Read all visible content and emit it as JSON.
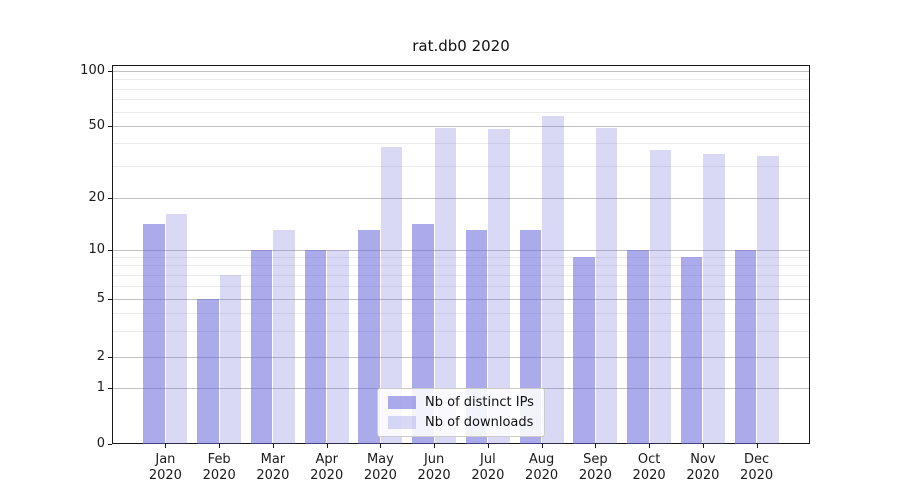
{
  "chart_data": {
    "type": "bar",
    "title": "rat.db0 2020",
    "categories": [
      "Jan",
      "Feb",
      "Mar",
      "Apr",
      "May",
      "Jun",
      "Jul",
      "Aug",
      "Sep",
      "Oct",
      "Nov",
      "Dec"
    ],
    "category_year": "2020",
    "series": [
      {
        "name": "Nb of distinct IPs",
        "color": "rgba(102,102,221,0.55)",
        "values": [
          14,
          5,
          10,
          10,
          13,
          14,
          13,
          13,
          9,
          10,
          9,
          10
        ]
      },
      {
        "name": "Nb of downloads",
        "color": "rgba(102,102,221,0.25)",
        "values": [
          16,
          7,
          13,
          10,
          38,
          49,
          48,
          57,
          49,
          37,
          35,
          34
        ]
      }
    ],
    "ytick_labels": [
      "100",
      "50",
      "20",
      "10",
      "5",
      "2",
      "1",
      "0"
    ],
    "yticks": [
      100,
      50,
      20,
      10,
      5,
      2,
      1,
      0
    ],
    "xlabel": "",
    "ylabel": "",
    "yscale": "log-like",
    "ylim": [
      0,
      110
    ],
    "grid": true,
    "legend_position": "bottom-center",
    "accent_color": "#6666dd"
  }
}
